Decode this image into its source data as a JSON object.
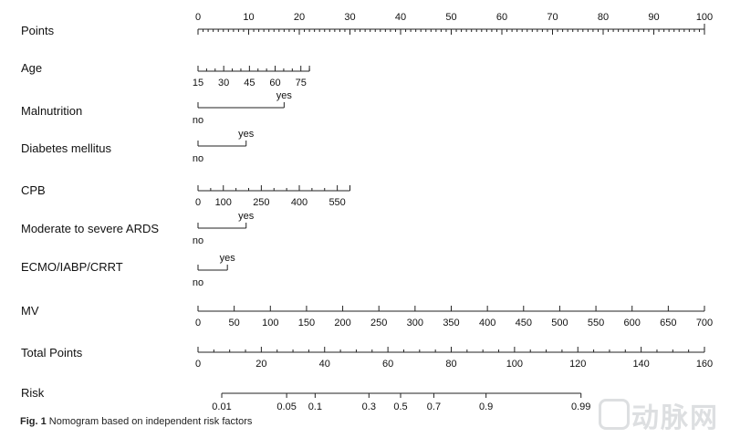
{
  "chart_data": {
    "type": "nomogram",
    "variables": [
      {
        "name": "Points",
        "kind": "points",
        "ticks": [
          0,
          10,
          20,
          30,
          40,
          50,
          60,
          70,
          80,
          90,
          100
        ],
        "minor_step": 1,
        "label_position": "above"
      },
      {
        "name": "Age",
        "kind": "continuous",
        "ticks": [
          15,
          30,
          45,
          60,
          75
        ],
        "minor_step": 5,
        "range": [
          15,
          80
        ],
        "points_range": [
          0,
          22
        ],
        "label_position": "below"
      },
      {
        "name": "Malnutrition",
        "kind": "categorical",
        "levels": [
          {
            "label": "no",
            "points": 0
          },
          {
            "label": "yes",
            "points": 17
          }
        ]
      },
      {
        "name": "Diabetes mellitus",
        "kind": "categorical",
        "levels": [
          {
            "label": "no",
            "points": 0
          },
          {
            "label": "yes",
            "points": 9.5
          }
        ]
      },
      {
        "name": "CPB",
        "kind": "continuous",
        "ticks": [
          0,
          100,
          250,
          400,
          550
        ],
        "minor_step": 50,
        "range": [
          0,
          600
        ],
        "points_range": [
          0,
          30
        ],
        "label_position": "below"
      },
      {
        "name": "Moderate to severe ARDS",
        "kind": "categorical",
        "levels": [
          {
            "label": "no",
            "points": 0
          },
          {
            "label": "yes",
            "points": 9.5
          }
        ]
      },
      {
        "name": "ECMO/IABP/CRRT",
        "kind": "categorical",
        "levels": [
          {
            "label": "no",
            "points": 0
          },
          {
            "label": "yes",
            "points": 5.8
          }
        ]
      },
      {
        "name": "MV",
        "kind": "continuous",
        "ticks": [
          0,
          50,
          100,
          150,
          200,
          250,
          300,
          350,
          400,
          450,
          500,
          550,
          600,
          650,
          700
        ],
        "minor_step": 50,
        "range": [
          0,
          700
        ],
        "points_range": [
          0,
          100
        ],
        "label_position": "below"
      },
      {
        "name": "Total Points",
        "kind": "total",
        "ticks": [
          0,
          20,
          40,
          60,
          80,
          100,
          120,
          140,
          160
        ],
        "minor_step": 5,
        "range": [
          0,
          160
        ],
        "label_position": "below"
      },
      {
        "name": "Risk",
        "kind": "risk",
        "ticks": [
          {
            "label": "0.01",
            "total": 7.5
          },
          {
            "label": "0.05",
            "total": 28
          },
          {
            "label": "0.1",
            "total": 37
          },
          {
            "label": "0.3",
            "total": 54
          },
          {
            "label": "0.5",
            "total": 64
          },
          {
            "label": "0.7",
            "total": 74.5
          },
          {
            "label": "0.9",
            "total": 91
          },
          {
            "label": "0.99",
            "total": 121
          }
        ],
        "label_position": "below"
      }
    ]
  },
  "caption": {
    "label": "Fig. 1",
    "text": "Nomogram based on independent risk factors"
  },
  "watermark": {
    "text": "动脉网",
    "icon": "brand-logo-icon"
  }
}
